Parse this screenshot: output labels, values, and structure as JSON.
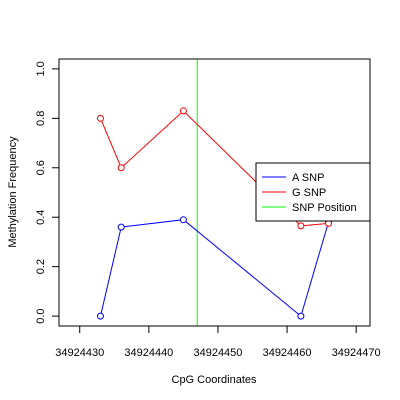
{
  "chart_data": {
    "type": "line",
    "title": "",
    "xlabel": "CpG Coordinates",
    "ylabel": "Methylation Frequency",
    "xlim": [
      34924427,
      34924472
    ],
    "ylim": [
      -0.04,
      1.04
    ],
    "xticks": [
      34924430,
      34924440,
      34924450,
      34924460,
      34924470
    ],
    "yticks": [
      0.0,
      0.2,
      0.4,
      0.6,
      0.8,
      1.0
    ],
    "xtick_labels": [
      "34924430",
      "34924440",
      "34924450",
      "34924460",
      "34924470"
    ],
    "ytick_labels": [
      "0.0",
      "0.2",
      "0.4",
      "0.6",
      "0.8",
      "1.0"
    ],
    "legend_position": "right",
    "series": [
      {
        "name": "A SNP",
        "color": "#0000ff",
        "x": [
          34924433,
          34924436,
          34924445,
          34924462,
          34924466
        ],
        "y": [
          0.0,
          0.36,
          0.39,
          0.0,
          0.38
        ]
      },
      {
        "name": "G SNP",
        "color": "#ff0000",
        "x": [
          34924433,
          34924436,
          34924445,
          34924462,
          34924466
        ],
        "y": [
          0.8,
          0.6,
          0.83,
          0.365,
          0.375
        ]
      }
    ],
    "snp_position": {
      "name": "SNP Position",
      "color": "#00ff00",
      "x": 34924447
    }
  }
}
